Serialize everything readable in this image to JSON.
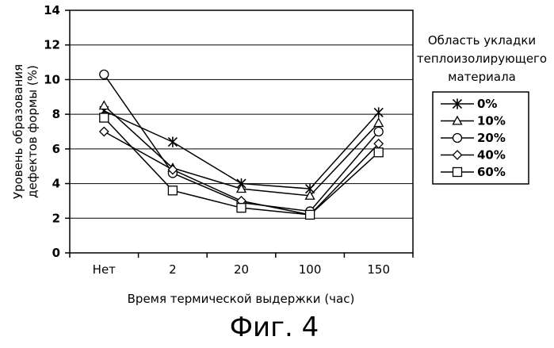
{
  "chart_data": {
    "type": "line",
    "categories": [
      "Нет",
      "2",
      "20",
      "100",
      "150"
    ],
    "series": [
      {
        "name": "0%",
        "marker": "star",
        "values": [
          8.2,
          6.4,
          4.0,
          3.7,
          8.1
        ]
      },
      {
        "name": "10%",
        "marker": "triangle",
        "values": [
          8.5,
          4.9,
          3.7,
          3.3,
          7.5
        ]
      },
      {
        "name": "20%",
        "marker": "circle",
        "values": [
          10.3,
          4.6,
          2.9,
          2.4,
          7.0
        ]
      },
      {
        "name": "40%",
        "marker": "diamond",
        "values": [
          7.0,
          4.8,
          3.0,
          2.2,
          6.3
        ]
      },
      {
        "name": "60%",
        "marker": "square",
        "values": [
          7.8,
          3.6,
          2.6,
          2.2,
          5.8
        ]
      }
    ],
    "y_ticks": [
      "0",
      "2",
      "4",
      "6",
      "8",
      "10",
      "12",
      "14"
    ],
    "ylim": [
      0,
      14
    ],
    "xlabel": "Время термической выдержки (час)",
    "ylabel_lines": [
      "Уровень образования",
      "дефектов формы (%)"
    ],
    "legend_title_lines": [
      "Область укладки",
      "теплоизолирующего",
      "материала"
    ],
    "grid": "horizontal",
    "legend_position": "right"
  },
  "caption": "Фиг. 4"
}
